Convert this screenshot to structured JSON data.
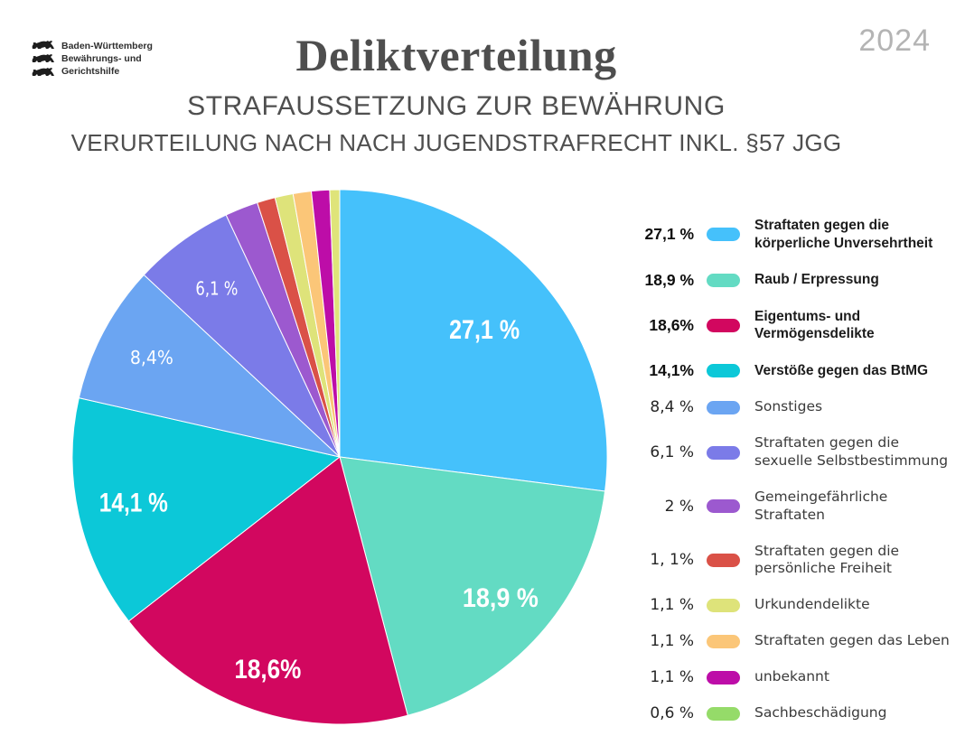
{
  "header": {
    "logo_lines": [
      "Baden-Württemberg",
      "Bewährungs- und",
      "Gerichtshilfe"
    ],
    "title": "Deliktverteilung",
    "subtitle1": "STRAFAUSSETZUNG ZUR BEWÄHRUNG",
    "subtitle2": "VERURTEILUNG NACH NACH JUGENDSTRAFRECHT INKL. §57 JGG",
    "year": "2024"
  },
  "chart_data": {
    "type": "pie",
    "title": "Deliktverteilung",
    "start_angle_deg": 0,
    "direction": "clockwise",
    "legend_position": "right",
    "slices": [
      {
        "label": "Straftaten gegen die körperliche Unversehrtheit",
        "value": 27.1,
        "pct_text": "27,1 %",
        "pie_label": "27,1 %",
        "color": "#45c1fb",
        "bold": true
      },
      {
        "label": "Raub / Erpressung",
        "value": 18.9,
        "pct_text": "18,9 %",
        "pie_label": "18,9 %",
        "color": "#63dbc3",
        "bold": true
      },
      {
        "label": "Eigentums- und Vermögensdelikte",
        "value": 18.6,
        "pct_text": "18,6%",
        "pie_label": "18,6%",
        "color": "#d2075f",
        "bold": true
      },
      {
        "label": "Verstöße gegen das BtMG",
        "value": 14.1,
        "pct_text": "14,1%",
        "pie_label": "14,1 %",
        "color": "#0cc8d8",
        "bold": true
      },
      {
        "label": "Sonstiges",
        "value": 8.4,
        "pct_text": "8,4 %",
        "pie_label": "8,4%",
        "color": "#6ba5f2",
        "bold": false
      },
      {
        "label": "Straftaten gegen die sexuelle Selbstbestimmung",
        "value": 6.1,
        "pct_text": "6,1 %",
        "pie_label": "6,1 %",
        "color": "#7b7be8",
        "bold": false
      },
      {
        "label": "Gemeingefährliche Straftaten",
        "value": 2,
        "pct_text": "2 %",
        "color": "#9c59cf",
        "bold": false
      },
      {
        "label": "Straftaten gegen die persönliche Freiheit",
        "value": 1.1,
        "pct_text": "1, 1%",
        "color": "#da5147",
        "bold": false
      },
      {
        "label": "Urkundendelikte",
        "value": 1.1,
        "pct_text": "1,1 %",
        "color": "#dee37a",
        "bold": false
      },
      {
        "label": "Straftaten gegen das Leben",
        "value": 1.1,
        "pct_text": "1,1 %",
        "color": "#fbc678",
        "bold": false
      },
      {
        "label": "unbekannt",
        "value": 1.1,
        "pct_text": "1,1 %",
        "color": "#bd0da8",
        "bold": false
      },
      {
        "label": "Sachbeschädigung",
        "value": 0.6,
        "pct_text": "0,6 %",
        "color": "#95db69",
        "pie_color": "#dfe47a",
        "bold": false
      }
    ]
  }
}
